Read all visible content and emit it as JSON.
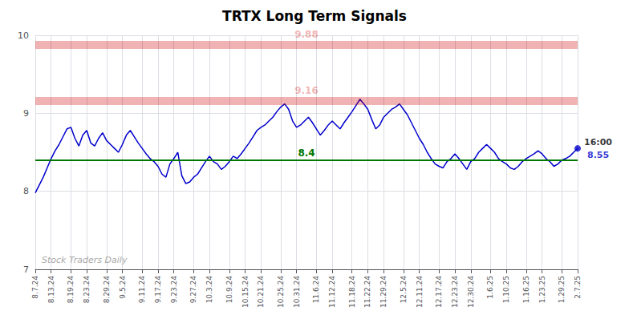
{
  "chart_data": {
    "type": "line",
    "title": "TRTX Long Term Signals",
    "categories": [
      "8.7.24",
      null,
      null,
      null,
      "8.13.24",
      null,
      null,
      null,
      null,
      "8.19.24",
      null,
      null,
      null,
      "8.23.24",
      null,
      null,
      null,
      null,
      "8.29.24",
      null,
      null,
      null,
      "9.5.24",
      null,
      null,
      null,
      null,
      "9.11.24",
      null,
      null,
      null,
      "9.17.24",
      null,
      null,
      null,
      "9.23.24",
      null,
      null,
      null,
      null,
      "9.27.24",
      null,
      null,
      null,
      "10.3.24",
      null,
      null,
      null,
      null,
      "10.9.24",
      null,
      null,
      null,
      "10.15.24",
      null,
      null,
      null,
      "10.21.24",
      null,
      null,
      null,
      null,
      "10.25.24",
      null,
      null,
      null,
      "10.31.24",
      null,
      null,
      null,
      null,
      "11.6.24",
      null,
      null,
      null,
      "11.12.24",
      null,
      null,
      null,
      null,
      "11.18.24",
      null,
      null,
      null,
      "11.22.24",
      null,
      null,
      null,
      "11.29.24",
      null,
      null,
      null,
      null,
      "12.5.24",
      null,
      null,
      null,
      "12.11.24",
      null,
      null,
      null,
      null,
      "12.17.24",
      null,
      null,
      null,
      "12.23.24",
      null,
      null,
      null,
      "12.30.24",
      null,
      null,
      null,
      null,
      "1.6.25",
      null,
      null,
      null,
      "1.10.25",
      null,
      null,
      null,
      null,
      "1.16.25",
      null,
      null,
      null,
      "1.23.25",
      null,
      null,
      null,
      null,
      "1.29.25",
      null,
      null,
      null,
      "2.7.25"
    ],
    "values": [
      7.98,
      8.08,
      8.18,
      8.3,
      8.42,
      8.52,
      8.6,
      8.7,
      8.8,
      8.82,
      8.68,
      8.58,
      8.72,
      8.78,
      8.62,
      8.58,
      8.68,
      8.75,
      8.65,
      8.6,
      8.55,
      8.5,
      8.6,
      8.72,
      8.78,
      8.7,
      8.62,
      8.55,
      8.48,
      8.42,
      8.38,
      8.32,
      8.22,
      8.18,
      8.35,
      8.42,
      8.5,
      8.2,
      8.1,
      8.12,
      8.18,
      8.22,
      8.3,
      8.38,
      8.45,
      8.38,
      8.35,
      8.28,
      8.32,
      8.38,
      8.45,
      8.42,
      8.48,
      8.55,
      8.62,
      8.7,
      8.78,
      8.82,
      8.85,
      8.9,
      8.95,
      9.02,
      9.08,
      9.12,
      9.05,
      8.9,
      8.82,
      8.85,
      8.9,
      8.95,
      8.88,
      8.8,
      8.72,
      8.78,
      8.85,
      8.9,
      8.85,
      8.8,
      8.88,
      8.95,
      9.02,
      9.1,
      9.18,
      9.12,
      9.05,
      8.92,
      8.8,
      8.85,
      8.95,
      9.0,
      9.05,
      9.08,
      9.12,
      9.05,
      8.98,
      8.88,
      8.78,
      8.68,
      8.6,
      8.5,
      8.42,
      8.35,
      8.32,
      8.3,
      8.38,
      8.42,
      8.48,
      8.42,
      8.35,
      8.28,
      8.38,
      8.42,
      8.5,
      8.55,
      8.6,
      8.55,
      8.5,
      8.42,
      8.38,
      8.35,
      8.3,
      8.28,
      8.32,
      8.38,
      8.42,
      8.45,
      8.48,
      8.52,
      8.48,
      8.42,
      8.38,
      8.32,
      8.35,
      8.4,
      8.42,
      8.45,
      8.5,
      8.55
    ],
    "color": "#0000cc",
    "ylim": [
      7,
      10
    ],
    "yticks": [
      7,
      8,
      9,
      10
    ],
    "grid": true,
    "hlines": [
      {
        "value": 9.88,
        "label": "9.88",
        "color": "#cc0000",
        "line_style": "band"
      },
      {
        "value": 9.16,
        "label": "9.16",
        "color": "#cc0000",
        "line_style": "band"
      },
      {
        "value": 8.4,
        "label": "8.4",
        "color": "#007700",
        "line_style": "solid"
      }
    ],
    "annotations": [
      {
        "text": "16:00",
        "x": "2.7.25",
        "y": 8.55,
        "color": "#000000"
      },
      {
        "text": "8.55",
        "x": "2.7.25",
        "y": 8.55,
        "color": "#0000cc",
        "marker": "circle"
      },
      {
        "text": "Stock Traders Daily",
        "color": "#aaaaaa"
      }
    ]
  }
}
